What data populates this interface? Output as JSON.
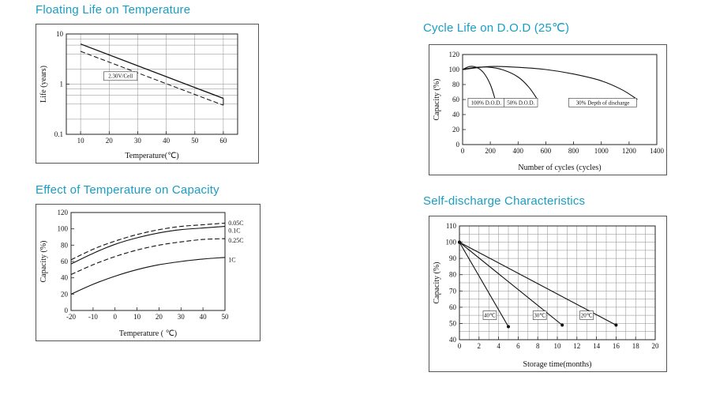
{
  "page": {
    "background": "#ffffff",
    "accent_color": "#189ec2"
  },
  "chart_data": [
    {
      "type": "line",
      "title": "Floating Life on Temperature",
      "xlabel": "Temperature(℃)",
      "ylabel": "Life (years)",
      "yscale": "log",
      "xlim": [
        5,
        65
      ],
      "ylim": [
        0.1,
        10
      ],
      "xticks": [
        10,
        20,
        30,
        40,
        50,
        60
      ],
      "yticks": [
        0.1,
        1,
        10
      ],
      "xgrid": [
        10,
        20,
        30,
        40,
        50,
        60
      ],
      "ygrid": [
        0.2,
        0.4,
        0.6,
        0.8,
        1,
        2,
        4,
        6,
        8
      ],
      "grid": true,
      "legend": "none",
      "margins": {
        "l": 38,
        "r": 26,
        "t": 12,
        "b": 36
      },
      "series": [
        {
          "name": "float-life-upper-limit",
          "dash": false,
          "width": 1.3,
          "x": [
            10,
            60
          ],
          "y": [
            6.3,
            0.52
          ]
        },
        {
          "name": "float-life-lower-limit",
          "dash": true,
          "width": 1,
          "x": [
            10,
            60
          ],
          "y": [
            4.5,
            0.38
          ]
        },
        {
          "name": "band-end-connector",
          "dash": false,
          "width": 1,
          "x": [
            60,
            60
          ],
          "y": [
            0.52,
            0.38
          ]
        }
      ],
      "annotations": [
        {
          "text": "2.30V/Cell",
          "x": 24,
          "y": 1.45,
          "boxed": true,
          "anchor": "middle",
          "size": 7
        }
      ]
    },
    {
      "type": "line",
      "title": "Cycle Life on D.O.D (25℃)",
      "xlabel": "Number of cycles (cycles)",
      "ylabel": "Capacity (%)",
      "yscale": "linear",
      "xlim": [
        0,
        1400
      ],
      "ylim": [
        0,
        120
      ],
      "xticks": [
        0,
        200,
        400,
        600,
        800,
        1000,
        1200,
        1400
      ],
      "yticks": [
        0,
        20,
        40,
        60,
        80,
        100,
        120
      ],
      "xgrid": [],
      "ygrid": [],
      "grid": false,
      "legend": "none",
      "margins": {
        "l": 42,
        "r": 12,
        "t": 12,
        "b": 38
      },
      "series": [
        {
          "name": "dod-100-percent",
          "dash": false,
          "x": [
            0,
            50,
            100,
            150,
            200,
            235
          ],
          "y": [
            100,
            104,
            103,
            96,
            80,
            60
          ]
        },
        {
          "name": "dod-50-percent",
          "dash": false,
          "x": [
            0,
            100,
            200,
            300,
            400,
            480,
            540
          ],
          "y": [
            100,
            103,
            103,
            99,
            90,
            76,
            60
          ]
        },
        {
          "name": "dod-30-percent",
          "dash": false,
          "x": [
            0,
            200,
            400,
            600,
            800,
            1000,
            1150,
            1260
          ],
          "y": [
            100,
            104,
            103,
            100,
            94,
            85,
            73,
            60
          ]
        }
      ],
      "annotations": [
        {
          "text": "100% D.O.D.",
          "x": 170,
          "y": 56,
          "boxed": true,
          "anchor": "middle",
          "size": 7
        },
        {
          "text": "50% D.O.D.",
          "x": 420,
          "y": 56,
          "boxed": true,
          "anchor": "middle",
          "size": 7
        },
        {
          "text": "30% Depth of discharge",
          "x": 1010,
          "y": 56,
          "boxed": true,
          "anchor": "middle",
          "size": 7
        }
      ]
    },
    {
      "type": "line",
      "title": "Effect of Temperature on Capacity",
      "xlabel": "Temperature ( ℃)",
      "ylabel": "Capacity (%)",
      "yscale": "linear",
      "xlim": [
        -20,
        50
      ],
      "ylim": [
        0,
        120
      ],
      "xticks": [
        -20,
        -10,
        0,
        10,
        20,
        30,
        40,
        50
      ],
      "yticks": [
        0,
        20,
        40,
        60,
        80,
        100,
        120
      ],
      "xgrid": [],
      "ygrid": [],
      "grid": false,
      "legend": "right-outside-labels",
      "margins": {
        "l": 44,
        "r": 44,
        "t": 10,
        "b": 38
      },
      "series": [
        {
          "name": "rate-0.05C",
          "dash": true,
          "x": [
            -20,
            -10,
            0,
            10,
            20,
            30,
            40,
            50
          ],
          "y": [
            62,
            75,
            85,
            93,
            99,
            103,
            105,
            107
          ]
        },
        {
          "name": "rate-0.1C",
          "dash": false,
          "x": [
            -20,
            -10,
            0,
            10,
            20,
            30,
            40,
            50
          ],
          "y": [
            57,
            70,
            81,
            89,
            95,
            99,
            101,
            103
          ]
        },
        {
          "name": "rate-0.25C",
          "dash": true,
          "x": [
            -20,
            -10,
            0,
            10,
            20,
            30,
            40,
            50
          ],
          "y": [
            44,
            56,
            66,
            74,
            80,
            84,
            87,
            88
          ]
        },
        {
          "name": "rate-1C",
          "dash": false,
          "x": [
            -20,
            -10,
            0,
            10,
            20,
            30,
            40,
            50
          ],
          "y": [
            20,
            32,
            42,
            50,
            56,
            60,
            63,
            65
          ]
        }
      ],
      "annotations": [
        {
          "text": "0.05C",
          "x": 51.5,
          "y": 107,
          "boxed": false,
          "anchor": "start",
          "size": 8
        },
        {
          "text": "0.1C",
          "x": 51.5,
          "y": 98,
          "boxed": false,
          "anchor": "start",
          "size": 8
        },
        {
          "text": "0.25C",
          "x": 51.5,
          "y": 86,
          "boxed": false,
          "anchor": "start",
          "size": 8
        },
        {
          "text": "1C",
          "x": 51.5,
          "y": 62,
          "boxed": false,
          "anchor": "start",
          "size": 8
        }
      ]
    },
    {
      "type": "line",
      "title": "Self-discharge Characteristics",
      "xlabel": "Storage time(months)",
      "ylabel": "Capacity (%)",
      "yscale": "linear",
      "xlim": [
        0,
        20
      ],
      "ylim": [
        40,
        110
      ],
      "xticks": [
        0,
        2,
        4,
        6,
        8,
        10,
        12,
        14,
        16,
        18,
        20
      ],
      "yticks": [
        40,
        50,
        60,
        70,
        80,
        90,
        100,
        110
      ],
      "xgrid": [
        1,
        2,
        3,
        4,
        5,
        6,
        7,
        8,
        9,
        10,
        11,
        12,
        13,
        14,
        15,
        16,
        17,
        18,
        19
      ],
      "ygrid": [
        45,
        50,
        55,
        60,
        65,
        70,
        75,
        80,
        85,
        90,
        95,
        100,
        105
      ],
      "grid": true,
      "legend": "none",
      "margins": {
        "l": 38,
        "r": 14,
        "t": 12,
        "b": 40
      },
      "series": [
        {
          "name": "storage-40C",
          "dash": false,
          "markers": true,
          "x": [
            0,
            5
          ],
          "y": [
            100,
            48
          ]
        },
        {
          "name": "storage-30C",
          "dash": false,
          "markers": true,
          "x": [
            0,
            10.5
          ],
          "y": [
            100,
            49
          ]
        },
        {
          "name": "storage-20C",
          "dash": false,
          "markers": true,
          "x": [
            0,
            16
          ],
          "y": [
            100,
            49
          ]
        }
      ],
      "annotations": [
        {
          "text": "40℃",
          "x": 3.1,
          "y": 55,
          "boxed": true,
          "anchor": "middle",
          "size": 7
        },
        {
          "text": "30℃",
          "x": 8.2,
          "y": 55,
          "boxed": true,
          "anchor": "middle",
          "size": 7
        },
        {
          "text": "20℃",
          "x": 13,
          "y": 55,
          "boxed": true,
          "anchor": "middle",
          "size": 7
        }
      ]
    }
  ]
}
